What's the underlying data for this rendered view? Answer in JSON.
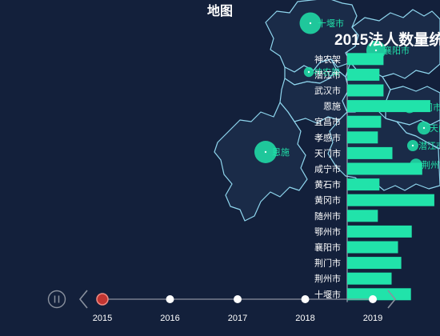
{
  "title": "地图",
  "subtitle": "2015法人数量统",
  "chart_data": [
    {
      "type": "map",
      "title": "地图",
      "regions": [
        "十堰市",
        "襄阳市",
        "神农架",
        "潜江市",
        "恩施",
        "荆门市",
        "天门市",
        "潜江市",
        "荆州市"
      ],
      "points": [
        {
          "name": "十堰市",
          "value": 35
        },
        {
          "name": "襄阳市",
          "value": 30
        },
        {
          "name": "神农架",
          "value": 8
        },
        {
          "name": "恩施",
          "value": 37
        },
        {
          "name": "天门市",
          "value": 16
        },
        {
          "name": "潜江市",
          "value": 11
        },
        {
          "name": "荆州市",
          "value": 14
        },
        {
          "name": "荆门市",
          "value": 13
        }
      ]
    },
    {
      "type": "bar",
      "orientation": "horizontal",
      "title": "2015法人数量统",
      "categories": [
        "神农架",
        "潜江市",
        "武汉市",
        "恩施",
        "宜昌市",
        "孝感市",
        "天门市",
        "咸宁市",
        "黄石市",
        "黄冈市",
        "随州市",
        "鄂州市",
        "襄阳市",
        "荆门市",
        "荆州市",
        "十堰市"
      ],
      "values": [
        45,
        40,
        45,
        103,
        42,
        38,
        56,
        93,
        40,
        108,
        38,
        80,
        63,
        67,
        55,
        79
      ],
      "xlim": [
        0,
        115
      ],
      "grid": false
    }
  ],
  "timeline": {
    "years": [
      "2015",
      "2016",
      "2017",
      "2018",
      "2019"
    ],
    "current": "2015",
    "play_icon": "pause-icon",
    "prev_icon": "chevron-left-icon",
    "next_icon": "chevron-right-icon"
  },
  "colors": {
    "background": "#13203b",
    "accent": "#21e3aa",
    "region_fill": "#1a2b48",
    "region_border": "#8fd6ee",
    "timeline_current": "#c23531"
  }
}
